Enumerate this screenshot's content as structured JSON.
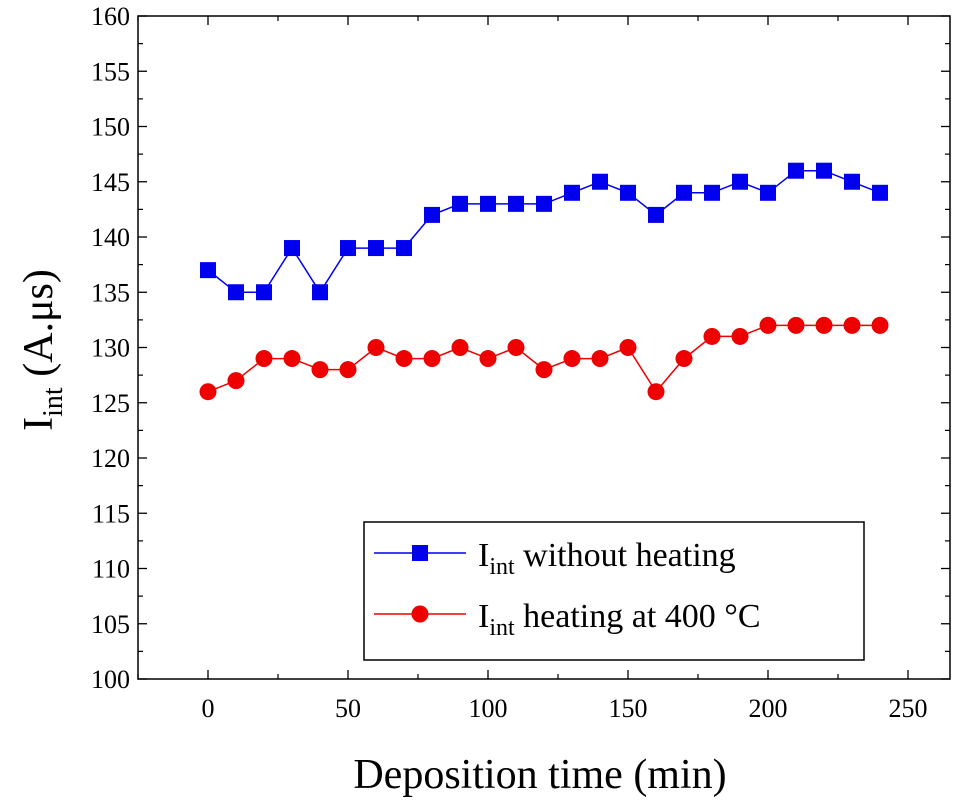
{
  "chart_data": {
    "type": "line",
    "xlabel": "Deposition time (min)",
    "ylabel": {
      "main": "I",
      "sub": "int",
      "rest": " (A.μs)"
    },
    "xlim": [
      -25,
      265
    ],
    "ylim": [
      100,
      160
    ],
    "xticks": [
      0,
      50,
      100,
      150,
      200,
      250
    ],
    "yticks": [
      100,
      105,
      110,
      115,
      120,
      125,
      130,
      135,
      140,
      145,
      150,
      155,
      160
    ],
    "grid": false,
    "legend_position": "bottom-right",
    "x": [
      0,
      10,
      20,
      30,
      40,
      50,
      60,
      70,
      80,
      90,
      100,
      110,
      120,
      130,
      140,
      150,
      160,
      170,
      180,
      190,
      200,
      210,
      220,
      230,
      240
    ],
    "series": [
      {
        "name": {
          "main": "I",
          "sub": "int",
          "rest": " without heating"
        },
        "color": "#0000ee",
        "marker": "square",
        "values": [
          137,
          135,
          135,
          139,
          135,
          139,
          139,
          139,
          142,
          143,
          143,
          143,
          143,
          144,
          145,
          144,
          142,
          144,
          144,
          145,
          144,
          146,
          146,
          145,
          144
        ]
      },
      {
        "name": {
          "main": "I",
          "sub": "int",
          "rest": " heating at 400 °C"
        },
        "color": "#ee0000",
        "marker": "circle",
        "values": [
          126,
          127,
          129,
          129,
          128,
          128,
          130,
          129,
          129,
          130,
          129,
          130,
          128,
          129,
          129,
          130,
          126,
          129,
          131,
          131,
          132,
          132,
          132,
          132,
          132
        ]
      }
    ]
  }
}
